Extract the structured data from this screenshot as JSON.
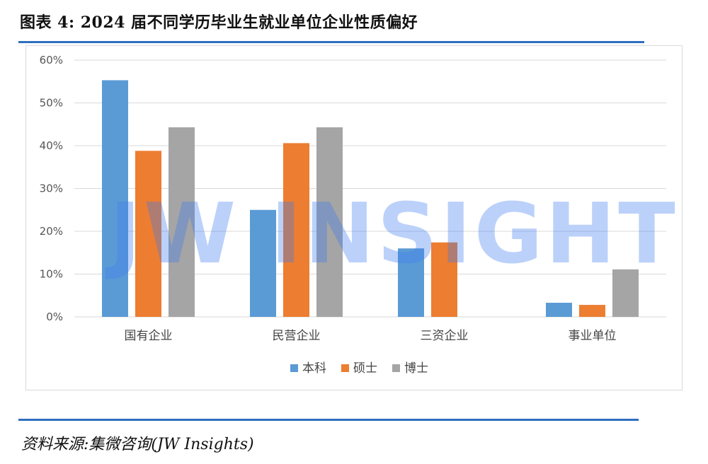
{
  "figure": {
    "title": "图表 4:  2024 届不同学历毕业生就业单位企业性质偏好",
    "source": "资料来源:集微咨询(JW Insights)",
    "watermark": "JW INSIGHTS"
  },
  "colors": {
    "rule": "#2f6ec0",
    "grid": "#d9d9d9",
    "series": [
      "#5b9bd5",
      "#ed7d31",
      "#a5a5a5"
    ]
  },
  "chart_data": {
    "type": "bar",
    "categories": [
      "国有企业",
      "民营企业",
      "三资企业",
      "事业单位"
    ],
    "series": [
      {
        "name": "本科",
        "values": [
          55.3,
          25.0,
          16.0,
          3.3
        ]
      },
      {
        "name": "硕士",
        "values": [
          38.8,
          40.6,
          17.4,
          2.8
        ]
      },
      {
        "name": "博士",
        "values": [
          44.3,
          44.3,
          0,
          11.1
        ]
      }
    ],
    "ylim": [
      0,
      60
    ],
    "yticks": [
      "0%",
      "10%",
      "20%",
      "30%",
      "40%",
      "50%",
      "60%"
    ],
    "grid": true,
    "legend_position": "bottom"
  }
}
